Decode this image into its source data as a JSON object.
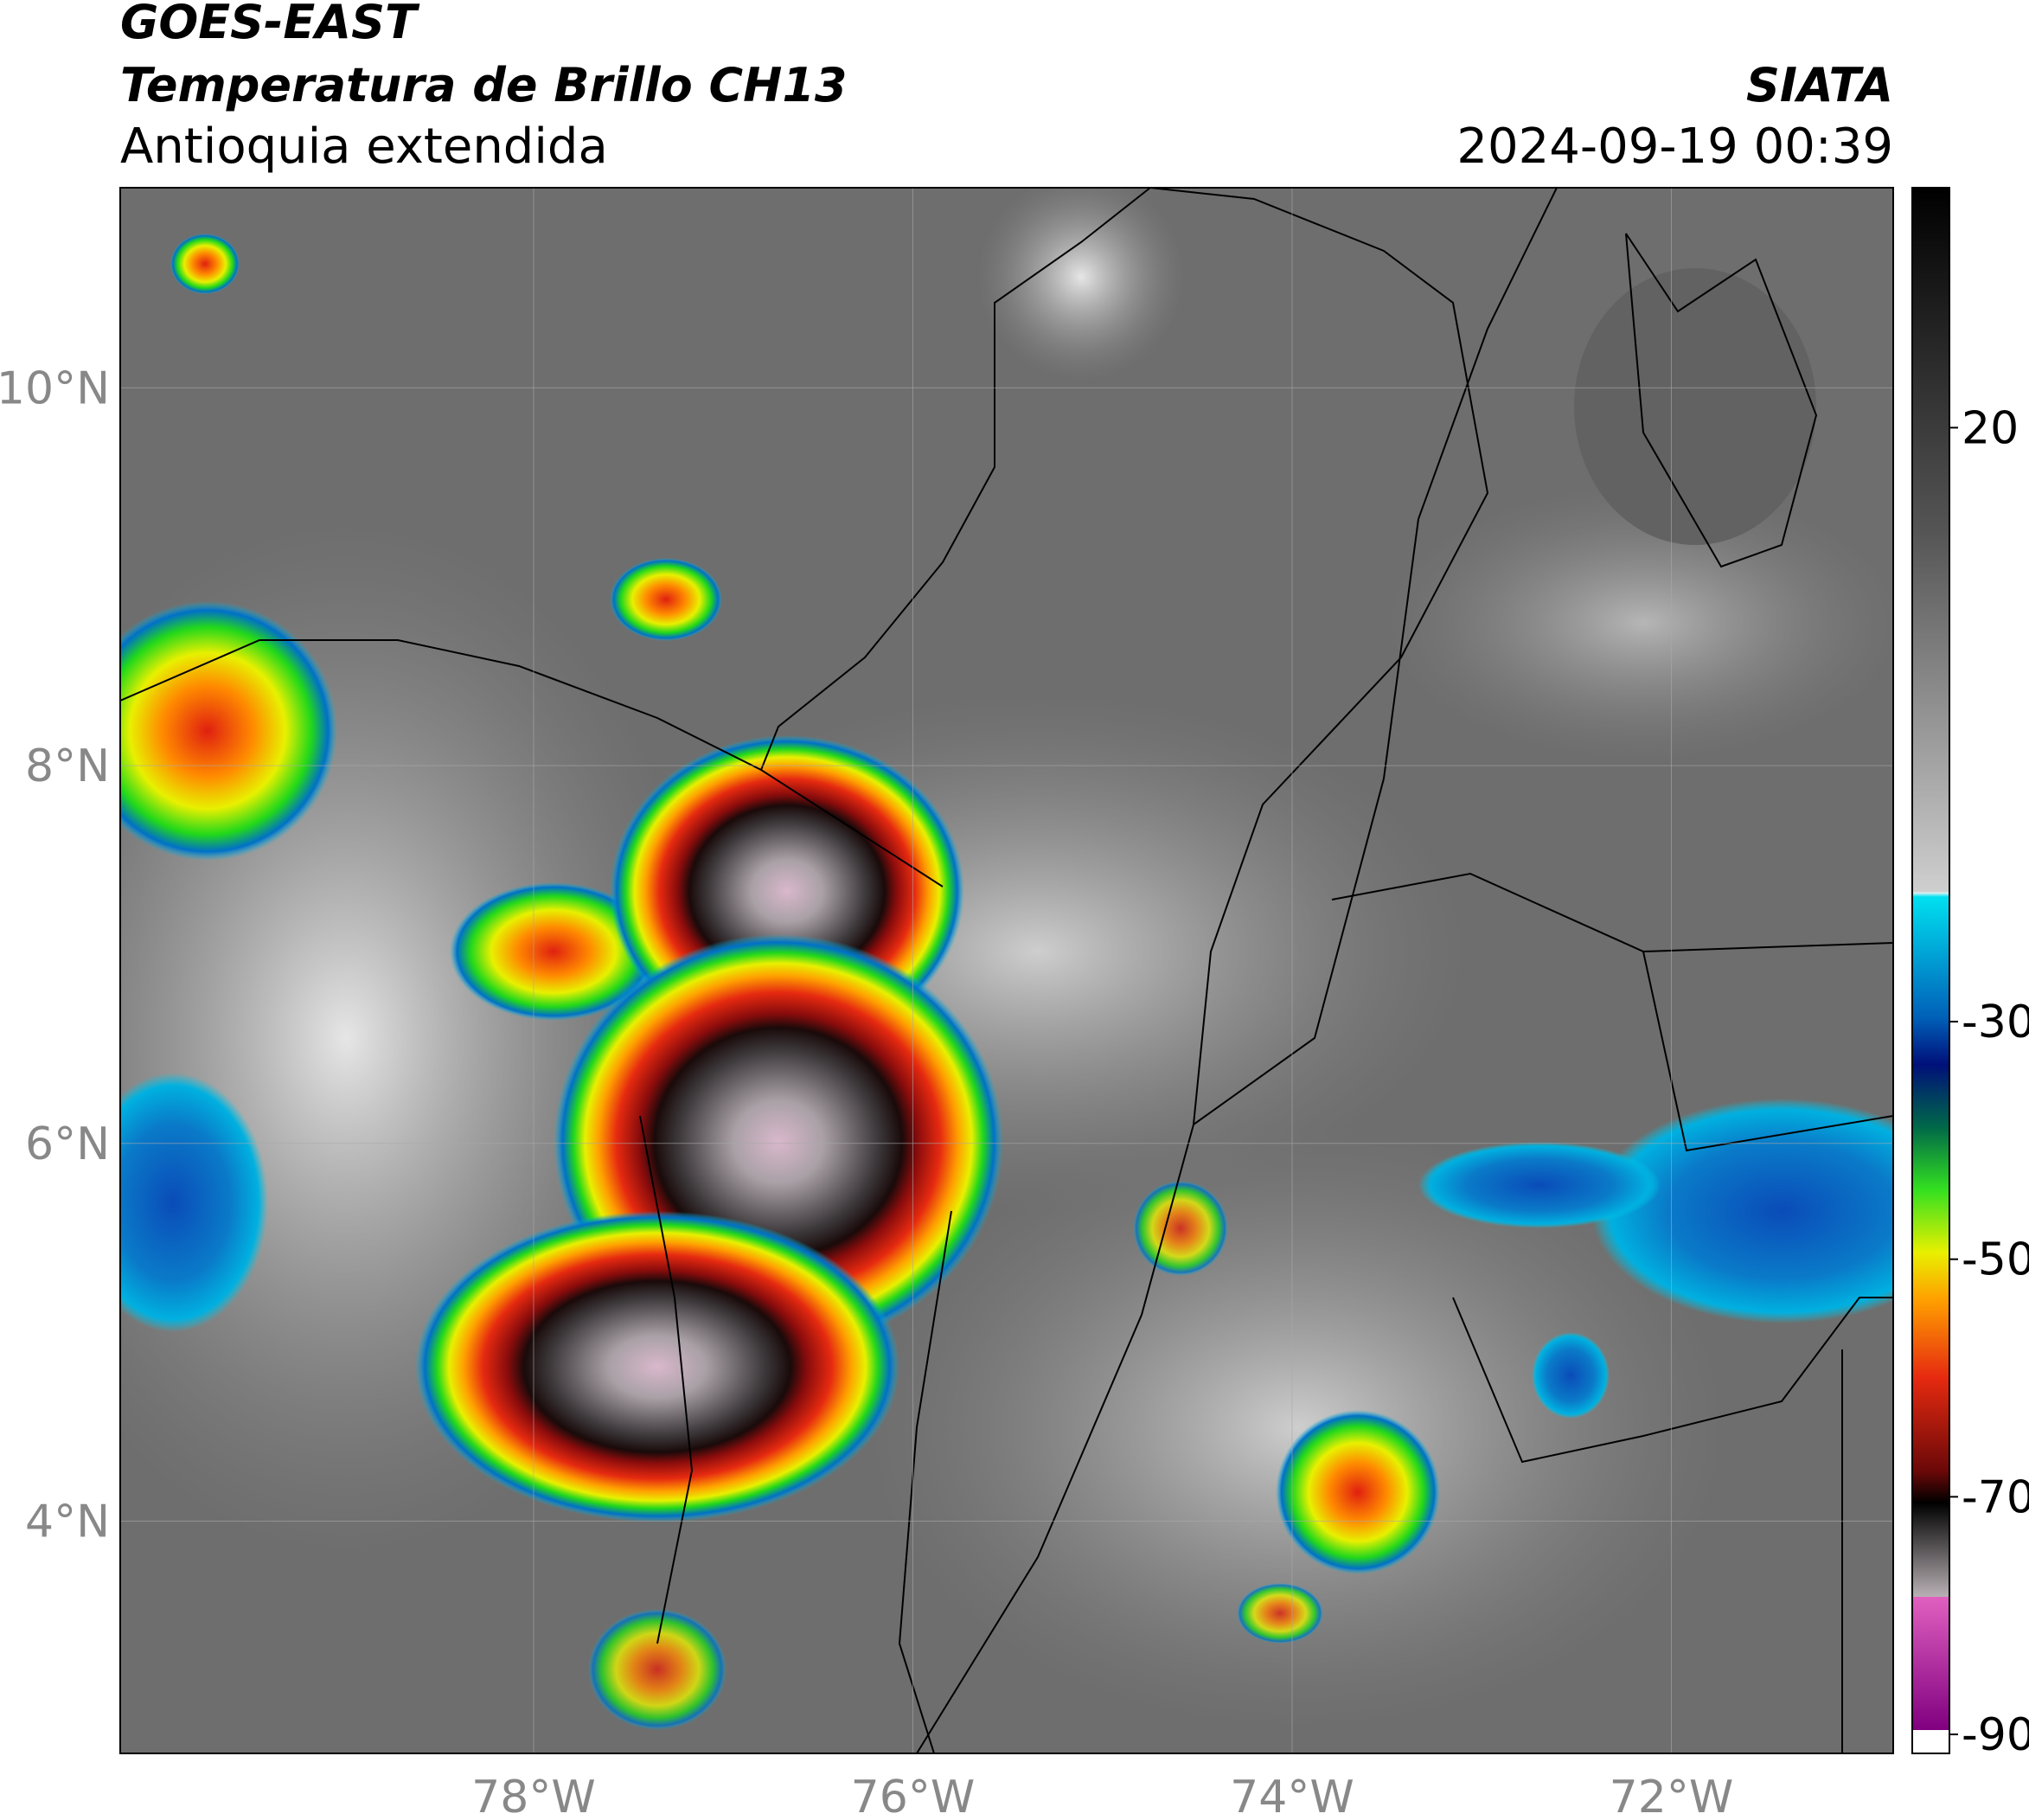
{
  "map": {
    "title": "GOES-EAST",
    "subtitle": "Temperatura de Brillo CH13",
    "region": "Antioquia extendida",
    "source": "SIATA",
    "datetime": "2024-09-19 00:39",
    "xlim": [
      -80.18,
      -70.83
    ],
    "ylim": [
      2.77,
      11.06
    ],
    "xticks": [
      {
        "value": -78,
        "label": "78°W"
      },
      {
        "value": -76,
        "label": "76°W"
      },
      {
        "value": -74,
        "label": "74°W"
      },
      {
        "value": -72,
        "label": "72°W"
      }
    ],
    "yticks": [
      {
        "value": 4,
        "label": "4°N"
      },
      {
        "value": 6,
        "label": "6°N"
      },
      {
        "value": 8,
        "label": "8°N"
      },
      {
        "value": 10,
        "label": "10°N"
      }
    ],
    "grid": true,
    "colorbar": {
      "lim": [
        -91.6,
        40.2
      ],
      "ticks": [
        20,
        -30,
        -50,
        -70,
        -90
      ]
    }
  }
}
